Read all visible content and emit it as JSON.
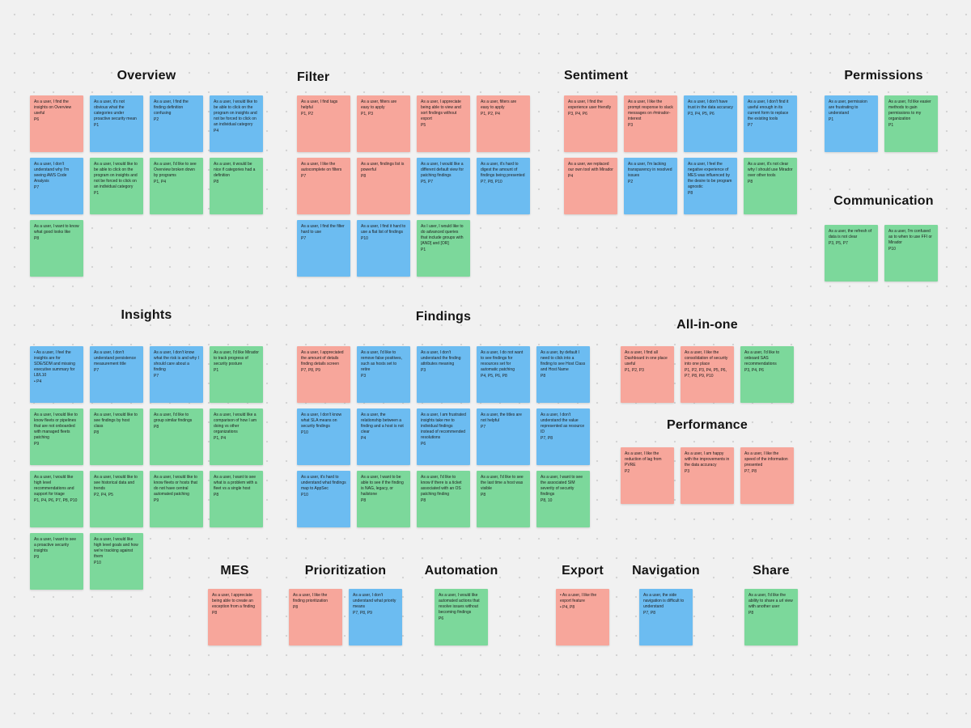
{
  "board": {
    "background_color": "#f1f1f1",
    "note_colors": {
      "red": "#F7A69B",
      "blue": "#6CBCF1",
      "green": "#7CD89B"
    }
  },
  "sections": [
    {
      "id": "overview",
      "title": "Overview",
      "notes": [
        {
          "color": "red",
          "text": "As a user, I find the insights on Overview useful",
          "tags": "P6"
        },
        {
          "color": "blue",
          "text": "As a user, it's not obvious what the categories under proactive security mean",
          "tags": "P1"
        },
        {
          "color": "blue",
          "text": "As a user, I find the finding definition confusing",
          "tags": "P2"
        },
        {
          "color": "blue",
          "text": "As a user, I would like to be able to click on the program on insights and not be forced to click on an individual category",
          "tags": "P4"
        },
        {
          "color": "blue",
          "text": "As a user, I don't understand why I'm seeing AWS Code Analysis",
          "tags": "P7"
        },
        {
          "color": "green",
          "text": "As a user, I would like to be able to click on the program on insights and not be forced to click on an individual category",
          "tags": "P1"
        },
        {
          "color": "green",
          "text": "As a user, I'd like to see Overview broken down by programs",
          "tags": "P1, P4"
        },
        {
          "color": "green",
          "text": "As a user, it would be nice if categories had a definition",
          "tags": "P8"
        },
        {
          "color": "green",
          "text": "As a user, I want to know what good looks like",
          "tags": "P8"
        }
      ]
    },
    {
      "id": "filter",
      "title": "Filter",
      "notes": [
        {
          "color": "red",
          "text": "As a user, I find tags helpful",
          "tags": "P1, P2"
        },
        {
          "color": "red",
          "text": "As a user, filters are easy to apply",
          "tags": "P1, P3"
        },
        {
          "color": "red",
          "text": "As a user, I appreciate being able to view and sort findings without export",
          "tags": "P5"
        },
        {
          "color": "red",
          "text": "As a user, filters are easy to apply",
          "tags": "P1, P2, P4"
        },
        {
          "color": "red",
          "text": "As a user, I like the autocomplete on filters",
          "tags": "P7"
        },
        {
          "color": "red",
          "text": "As a user, findings list is powerful",
          "tags": "P8"
        },
        {
          "color": "blue",
          "text": "As a user, I would like a different default view for patching findings",
          "tags": "P5, P7"
        },
        {
          "color": "blue",
          "text": "As a user, it's hard to digest the amount of findings being presented",
          "tags": "P7, P8, P10"
        },
        {
          "color": "blue",
          "text": "As a user, I find the filter hard to use",
          "tags": "P7"
        },
        {
          "color": "blue",
          "text": "As a user, I find it hard to use a flat list of findings",
          "tags": "P10"
        },
        {
          "color": "green",
          "text": "As I user, I would like to do advanced queries that include groups with [AND] and [OR]",
          "tags": "P1"
        }
      ]
    },
    {
      "id": "sentiment",
      "title": "Sentiment",
      "notes": [
        {
          "color": "red",
          "text": "As a user, I find the experience user friendly",
          "tags": "P3, P4, P6"
        },
        {
          "color": "red",
          "text": "As a user, I like the prompt response to slack messages on #mirador-interest",
          "tags": "P3"
        },
        {
          "color": "blue",
          "text": "As a user, I don't have trust in the data accuracy",
          "tags": "P3, P4, P5, P6"
        },
        {
          "color": "blue",
          "text": "As a user, I don't find it useful enough in its current form to replace the existing tools",
          "tags": "P7"
        },
        {
          "color": "red",
          "text": "As a user, we replaced our own tool with Mirador",
          "tags": "P4"
        },
        {
          "color": "blue",
          "text": "As a user, I'm lacking transparency in resolved issues",
          "tags": "P2"
        },
        {
          "color": "blue",
          "text": "As a user, I feel the negative experience of MES was influenced by the desire to be program agnostic",
          "tags": "P8"
        },
        {
          "color": "green",
          "text": "As a user, it's not clear why I should use Mirador over other tools",
          "tags": "P8"
        }
      ]
    },
    {
      "id": "permissions",
      "title": "Permissions",
      "notes": [
        {
          "color": "blue",
          "text": "As a user, permission are frustrating to understand",
          "tags": "P1"
        },
        {
          "color": "green",
          "text": "As a user, I'd like easier methods to gain permissions to my organization",
          "tags": "P1"
        }
      ]
    },
    {
      "id": "communication",
      "title": "Communication",
      "notes": [
        {
          "color": "green",
          "text": "As a user, the refresh of data is not clear",
          "tags": "P3, P5, P7"
        },
        {
          "color": "green",
          "text": "As a user, I'm confused as to when to use FFI or Mirador",
          "tags": "P10"
        }
      ]
    },
    {
      "id": "insights",
      "title": "Insights",
      "notes": [
        {
          "color": "blue",
          "text": "• As a user, I feel the insights are for SDE/SDM and missing executive summary for L8/L10",
          "tags": "• P4"
        },
        {
          "color": "blue",
          "text": "As a user, I don't understand persistence measurement title",
          "tags": "P7"
        },
        {
          "color": "blue",
          "text": "As a user, I don't know what the risk is and why I should care about a finding",
          "tags": "P7"
        },
        {
          "color": "green",
          "text": "As a user, I'd like Mirador to track progress of security posture",
          "tags": "P1"
        },
        {
          "color": "green",
          "text": "As a user, I would like to know fleets or pipelines that are not onboarded with managed fleets patching",
          "tags": "P9"
        },
        {
          "color": "green",
          "text": "As a user, I would like to see findings by host class",
          "tags": "P8"
        },
        {
          "color": "green",
          "text": "As a user, I'd like to group similar findings",
          "tags": "P8"
        },
        {
          "color": "green",
          "text": "As a user, I would like a comparison of how I am doing vs other organizations",
          "tags": "P1, P4"
        },
        {
          "color": "green",
          "text": "As a user, I would like high level recommendations and support for triage",
          "tags": "P1, P4, P6, P7, P8, P10"
        },
        {
          "color": "green",
          "text": "As a user, I would like to see historical data and trends",
          "tags": "P2, P4, P5"
        },
        {
          "color": "green",
          "text": "As a user, I would like to know fleets or hosts that do not have central automated patching",
          "tags": "P9"
        },
        {
          "color": "green",
          "text": "As a user, I want to see what is a problem with a fleet vs a single host",
          "tags": "P8"
        },
        {
          "color": "green",
          "text": "As a user, I want to see a proactive security insights",
          "tags": "P9"
        },
        {
          "color": "green",
          "text": "As a user, I would like high level goals and how we're tracking against them",
          "tags": "P10"
        }
      ]
    },
    {
      "id": "findings",
      "title": "Findings",
      "notes": [
        {
          "color": "red",
          "text": "As a user, I appreciated the amount of details finding details screen",
          "tags": "P7, P8, P9"
        },
        {
          "color": "blue",
          "text": "As a user, I'd like to remove false positives, such as hosts set to retire",
          "tags": "P3"
        },
        {
          "color": "blue",
          "text": "As a user, I don't understand the finding attributes meaning",
          "tags": "P3"
        },
        {
          "color": "blue",
          "text": "As a user, I do not want to see findings for resources set for automatic patching",
          "tags": "P4, P5, P6, P8"
        },
        {
          "color": "blue",
          "text": "As a user, by default I need to click into a finding to see Host Class and Host Name",
          "tags": "P8"
        },
        {
          "color": "blue",
          "text": "As a user, I don't know what SLA means on security findings",
          "tags": "P10"
        },
        {
          "color": "blue",
          "text": "As a user, the relationship between a finding and a host is not clear",
          "tags": "P4"
        },
        {
          "color": "blue",
          "text": "As a user, I am frustrated insights take me to individual findings instead of recommended resolutions",
          "tags": "P6"
        },
        {
          "color": "blue",
          "text": "As a user, the titles are not helpful",
          "tags": "P7"
        },
        {
          "color": "blue",
          "text": "As a user, I don't understand the value represented as resource ID",
          "tags": "P7, P8"
        },
        {
          "color": "blue",
          "text": "As a user, it's hard to understand what findings map to AppSec",
          "tags": "P10"
        },
        {
          "color": "green",
          "text": "As a user, I want to be able to see if the finding is NAG, legacy, or hailstone",
          "tags": "P8"
        },
        {
          "color": "green",
          "text": "As a user, I'd like to know if there is a ticket associated with an OS patching finding",
          "tags": "P8"
        },
        {
          "color": "green",
          "text": "As a user, I'd like to see the last time a host was visible",
          "tags": "P8"
        },
        {
          "color": "green",
          "text": "As a user, I want to see the associated SIM severity of security findings",
          "tags": "P8, 10"
        }
      ]
    },
    {
      "id": "all-in-one",
      "title": "All-in-one",
      "notes": [
        {
          "color": "red",
          "text": "As a user, I find all Dashboard in one place useful",
          "tags": "P1, P2, P3"
        },
        {
          "color": "red",
          "text": "As a user, I like the consolidation of security into one place",
          "tags": "P1, P2, P3, P4, P5, P6, P7, P8, P9, P10"
        },
        {
          "color": "green",
          "text": "As a user, I'd like to onboard SAS recommendations",
          "tags": "P3, P4, P6"
        }
      ]
    },
    {
      "id": "performance",
      "title": "Performance",
      "notes": [
        {
          "color": "red",
          "text": "As a user, I like the reduction of lag from PVRE",
          "tags": "P2"
        },
        {
          "color": "red",
          "text": "As a user, I am happy with the improvements in the data accuracy",
          "tags": "P3"
        },
        {
          "color": "red",
          "text": "As a user, I like the speed of the information presented",
          "tags": "P7, P8"
        }
      ]
    },
    {
      "id": "mes",
      "title": "MES",
      "notes": [
        {
          "color": "red",
          "text": "As a user, I appreciate being able to create an exception from a finding",
          "tags": "P8"
        }
      ]
    },
    {
      "id": "prioritization",
      "title": "Prioritization",
      "notes": [
        {
          "color": "red",
          "text": "As a user, I like the finding prioritization",
          "tags": "P8"
        },
        {
          "color": "blue",
          "text": "As a user, I don't understand what priority means",
          "tags": "P7, P8, P9"
        }
      ]
    },
    {
      "id": "automation",
      "title": "Automation",
      "notes": [
        {
          "color": "green",
          "text": "As a user, I would like automated actions that resolve issues without becoming findings",
          "tags": "P6"
        }
      ]
    },
    {
      "id": "export",
      "title": "Export",
      "notes": [
        {
          "color": "red",
          "text": "• As a user, I like the export feature",
          "tags": "• P4, P8"
        }
      ]
    },
    {
      "id": "navigation",
      "title": "Navigation",
      "notes": [
        {
          "color": "blue",
          "text": "As a user, the side navigation is difficult to understand",
          "tags": "P7, P8"
        }
      ]
    },
    {
      "id": "share",
      "title": "Share",
      "notes": [
        {
          "color": "green",
          "text": "As a user, I'd like the ability to share a url view with another user",
          "tags": "P8"
        }
      ]
    }
  ]
}
